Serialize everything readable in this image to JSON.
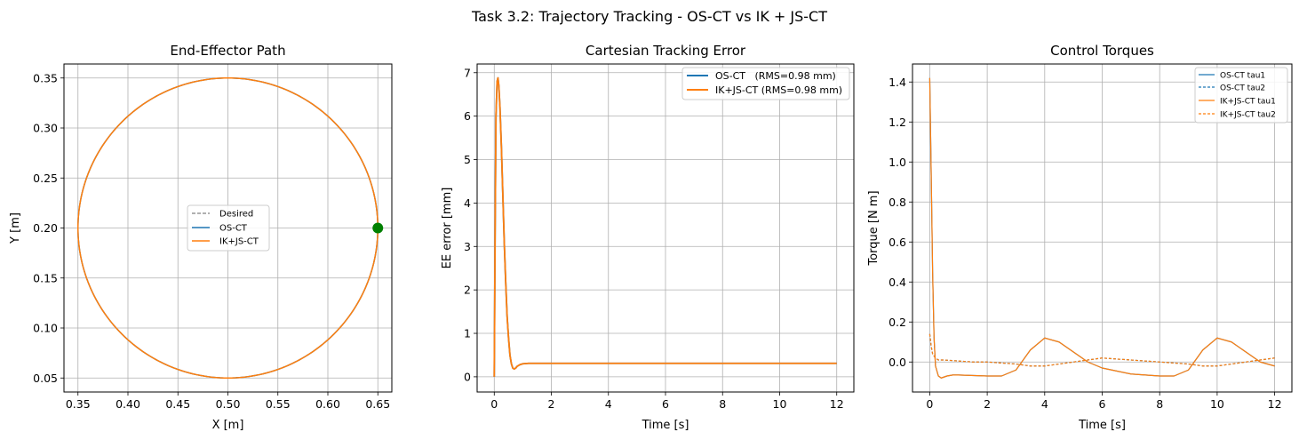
{
  "figure": {
    "suptitle": "Task 3.2: Trajectory Tracking - OS-CT vs IK + JS-CT"
  },
  "colors": {
    "os_ct": "#1f77b4",
    "ik_js_ct": "#ff7f0e",
    "desired": "#808080",
    "marker": "#008000"
  },
  "chart_data": [
    {
      "type": "line",
      "title": "End-Effector Path",
      "xlabel": "X [m]",
      "ylabel": "Y [m]",
      "xlim": [
        0.336,
        0.664
      ],
      "ylim": [
        0.036,
        0.364
      ],
      "xticks": [
        0.35,
        0.4,
        0.45,
        0.5,
        0.55,
        0.6,
        0.65
      ],
      "xticklabels": [
        "0.35",
        "0.40",
        "0.45",
        "0.50",
        "0.55",
        "0.60",
        "0.65"
      ],
      "yticks": [
        0.05,
        0.1,
        0.15,
        0.2,
        0.25,
        0.3,
        0.35
      ],
      "yticklabels": [
        "0.05",
        "0.10",
        "0.15",
        "0.20",
        "0.25",
        "0.30",
        "0.35"
      ],
      "grid": true,
      "legend_position": "center",
      "path": {
        "shape": "circle",
        "center": [
          0.5,
          0.2
        ],
        "radius": 0.15
      },
      "start_point": [
        0.65,
        0.2
      ],
      "series": [
        {
          "name": "Desired",
          "style": "dashed"
        },
        {
          "name": "OS-CT",
          "style": "solid"
        },
        {
          "name": "IK+JS-CT",
          "style": "solid"
        }
      ]
    },
    {
      "type": "line",
      "title": "Cartesian Tracking Error",
      "xlabel": "Time [s]",
      "ylabel": "EE error [mm]",
      "xlim": [
        -0.6,
        12.6
      ],
      "ylim": [
        -0.35,
        7.2
      ],
      "xticks": [
        0,
        2,
        4,
        6,
        8,
        10,
        12
      ],
      "xticklabels": [
        "0",
        "2",
        "4",
        "6",
        "8",
        "10",
        "12"
      ],
      "yticks": [
        0,
        1,
        2,
        3,
        4,
        5,
        6,
        7
      ],
      "yticklabels": [
        "0",
        "1",
        "2",
        "3",
        "4",
        "5",
        "6",
        "7"
      ],
      "grid": true,
      "legend_position": "top-right",
      "series": [
        {
          "name": "OS-CT   (RMS=0.98 mm)",
          "x": [
            0,
            0.03,
            0.06,
            0.1,
            0.13,
            0.16,
            0.2,
            0.25,
            0.3,
            0.35,
            0.4,
            0.45,
            0.5,
            0.55,
            0.6,
            0.65,
            0.7,
            0.75,
            0.8,
            0.9,
            1.0,
            1.2,
            1.5,
            2,
            3,
            4,
            6,
            8,
            10,
            12
          ],
          "y": [
            0,
            3.3,
            6.0,
            6.8,
            6.88,
            6.7,
            6.2,
            5.3,
            4.2,
            3.1,
            2.2,
            1.4,
            0.9,
            0.5,
            0.3,
            0.2,
            0.18,
            0.2,
            0.24,
            0.28,
            0.3,
            0.31,
            0.31,
            0.31,
            0.31,
            0.31,
            0.31,
            0.31,
            0.31,
            0.31
          ]
        },
        {
          "name": "IK+JS-CT (RMS=0.98 mm)",
          "x": [
            0,
            0.03,
            0.06,
            0.1,
            0.13,
            0.16,
            0.2,
            0.25,
            0.3,
            0.35,
            0.4,
            0.45,
            0.5,
            0.55,
            0.6,
            0.65,
            0.7,
            0.75,
            0.8,
            0.9,
            1.0,
            1.2,
            1.5,
            2,
            3,
            4,
            6,
            8,
            10,
            12
          ],
          "y": [
            0,
            3.3,
            6.0,
            6.8,
            6.88,
            6.7,
            6.2,
            5.3,
            4.2,
            3.1,
            2.2,
            1.4,
            0.9,
            0.5,
            0.3,
            0.2,
            0.18,
            0.2,
            0.24,
            0.28,
            0.3,
            0.31,
            0.31,
            0.31,
            0.31,
            0.31,
            0.31,
            0.31,
            0.31,
            0.31
          ]
        }
      ]
    },
    {
      "type": "line",
      "title": "Control Torques",
      "xlabel": "Time [s]",
      "ylabel": "Torque [N m]",
      "xlim": [
        -0.6,
        12.6
      ],
      "ylim": [
        -0.15,
        1.49
      ],
      "xticks": [
        0,
        2,
        4,
        6,
        8,
        10,
        12
      ],
      "xticklabels": [
        "0",
        "2",
        "4",
        "6",
        "8",
        "10",
        "12"
      ],
      "yticks": [
        0.0,
        0.2,
        0.4,
        0.6,
        0.8,
        1.0,
        1.2,
        1.4
      ],
      "yticklabels": [
        "0.0",
        "0.2",
        "0.4",
        "0.6",
        "0.8",
        "1.0",
        "1.2",
        "1.4"
      ],
      "grid": true,
      "legend_position": "top-right",
      "series": [
        {
          "name": "OS-CT tau1",
          "style": "solid",
          "x": [
            0,
            0.05,
            0.1,
            0.15,
            0.2,
            0.3,
            0.4,
            0.6,
            0.8,
            1,
            2,
            2.5,
            3,
            3.5,
            4,
            4.5,
            5,
            5.5,
            6,
            7,
            8,
            8.5,
            9,
            9.5,
            10,
            10.5,
            11,
            11.5,
            12
          ],
          "y": [
            1.42,
            0.95,
            0.45,
            0.12,
            -0.02,
            -0.07,
            -0.08,
            -0.07,
            -0.065,
            -0.065,
            -0.07,
            -0.07,
            -0.04,
            0.06,
            0.12,
            0.1,
            0.05,
            0.0,
            -0.03,
            -0.06,
            -0.07,
            -0.07,
            -0.04,
            0.06,
            0.12,
            0.1,
            0.05,
            0.0,
            -0.02
          ]
        },
        {
          "name": "OS-CT tau2",
          "style": "dashed",
          "x": [
            0,
            0.05,
            0.1,
            0.2,
            0.3,
            0.5,
            1,
            1.5,
            2,
            2.5,
            3,
            3.5,
            4,
            4.5,
            5,
            5.5,
            6,
            6.5,
            7,
            7.5,
            8,
            8.5,
            9,
            9.5,
            10,
            10.5,
            11,
            11.5,
            12
          ],
          "y": [
            0.14,
            0.08,
            0.04,
            0.02,
            0.01,
            0.01,
            0.005,
            0.0,
            0.0,
            -0.005,
            -0.01,
            -0.02,
            -0.02,
            -0.01,
            0.0,
            0.01,
            0.02,
            0.015,
            0.01,
            0.005,
            0.0,
            -0.005,
            -0.01,
            -0.02,
            -0.02,
            -0.01,
            0.0,
            0.01,
            0.02
          ]
        },
        {
          "name": "IK+JS-CT tau1",
          "style": "solid",
          "x": [
            0,
            0.05,
            0.1,
            0.15,
            0.2,
            0.3,
            0.4,
            0.6,
            0.8,
            1,
            2,
            2.5,
            3,
            3.5,
            4,
            4.5,
            5,
            5.5,
            6,
            7,
            8,
            8.5,
            9,
            9.5,
            10,
            10.5,
            11,
            11.5,
            12
          ],
          "y": [
            1.42,
            0.95,
            0.45,
            0.12,
            -0.02,
            -0.07,
            -0.08,
            -0.07,
            -0.065,
            -0.065,
            -0.07,
            -0.07,
            -0.04,
            0.06,
            0.12,
            0.1,
            0.05,
            0.0,
            -0.03,
            -0.06,
            -0.07,
            -0.07,
            -0.04,
            0.06,
            0.12,
            0.1,
            0.05,
            0.0,
            -0.02
          ]
        },
        {
          "name": "IK+JS-CT tau2",
          "style": "dashed",
          "x": [
            0,
            0.05,
            0.1,
            0.2,
            0.3,
            0.5,
            1,
            1.5,
            2,
            2.5,
            3,
            3.5,
            4,
            4.5,
            5,
            5.5,
            6,
            6.5,
            7,
            7.5,
            8,
            8.5,
            9,
            9.5,
            10,
            10.5,
            11,
            11.5,
            12
          ],
          "y": [
            0.14,
            0.08,
            0.04,
            0.02,
            0.01,
            0.01,
            0.005,
            0.0,
            0.0,
            -0.005,
            -0.01,
            -0.02,
            -0.02,
            -0.01,
            0.0,
            0.01,
            0.02,
            0.015,
            0.01,
            0.005,
            0.0,
            -0.005,
            -0.01,
            -0.02,
            -0.02,
            -0.01,
            0.0,
            0.01,
            0.02
          ]
        }
      ]
    }
  ]
}
